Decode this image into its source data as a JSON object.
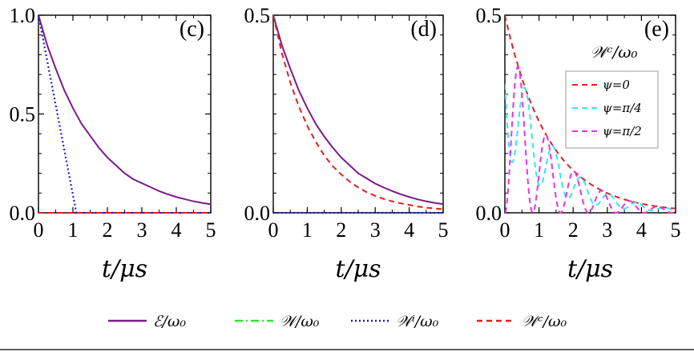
{
  "chart_data": [
    {
      "panel": "(c)",
      "type": "line",
      "xlabel": "t/μs",
      "xlim": [
        0,
        5
      ],
      "ylim": [
        0,
        1.0
      ],
      "xticks": [
        "0",
        "1",
        "2",
        "3",
        "4",
        "5"
      ],
      "yticks": [
        "0.0",
        "0.5",
        "1.0"
      ],
      "series": [
        {
          "name": "ℰ/ω₀",
          "color": "#7b1a8c",
          "dash": "solid",
          "x": [
            0,
            0.25,
            0.5,
            0.75,
            1,
            1.25,
            1.5,
            1.75,
            2,
            2.25,
            2.5,
            2.75,
            3,
            3.25,
            3.5,
            3.75,
            4,
            4.25,
            4.5,
            4.75,
            5
          ],
          "y": [
            1.0,
            0.85,
            0.73,
            0.62,
            0.53,
            0.45,
            0.39,
            0.33,
            0.28,
            0.24,
            0.2,
            0.17,
            0.15,
            0.13,
            0.11,
            0.094,
            0.08,
            0.069,
            0.058,
            0.05,
            0.043
          ]
        },
        {
          "name": "𝒲ⁱ/ω₀",
          "color": "#1a1ad6",
          "dash": "dotted",
          "x": [
            0,
            1.1,
            5
          ],
          "y": [
            1.0,
            0.0,
            0.0
          ]
        },
        {
          "name": "𝒲ᶜ/ω₀",
          "color": "#e02020",
          "dash": "dashed",
          "x": [
            0,
            5
          ],
          "y": [
            0.0,
            0.0
          ]
        }
      ]
    },
    {
      "panel": "(d)",
      "type": "line",
      "xlabel": "t/μs",
      "xlim": [
        0,
        5
      ],
      "ylim": [
        0,
        0.5
      ],
      "xticks": [
        "0",
        "1",
        "2",
        "3",
        "4",
        "5"
      ],
      "yticks": [
        "0.0",
        "0.5"
      ],
      "series": [
        {
          "name": "ℰ/ω₀",
          "color": "#7b1a8c",
          "dash": "solid",
          "x": [
            0,
            0.25,
            0.5,
            0.75,
            1,
            1.25,
            1.5,
            1.75,
            2,
            2.25,
            2.5,
            2.75,
            3,
            3.25,
            3.5,
            3.75,
            4,
            4.25,
            4.5,
            4.75,
            5
          ],
          "y": [
            0.5,
            0.425,
            0.365,
            0.31,
            0.265,
            0.225,
            0.193,
            0.165,
            0.14,
            0.12,
            0.1,
            0.087,
            0.074,
            0.064,
            0.055,
            0.047,
            0.04,
            0.034,
            0.029,
            0.025,
            0.022
          ]
        },
        {
          "name": "𝒲ᶜ/ω₀",
          "color": "#e02020",
          "dash": "dashed",
          "x": [
            0,
            0.25,
            0.5,
            0.75,
            1,
            1.25,
            1.5,
            1.75,
            2,
            2.25,
            2.5,
            2.75,
            3,
            3.25,
            3.5,
            3.75,
            4,
            4.25,
            4.5,
            4.75,
            5
          ],
          "y": [
            0.5,
            0.405,
            0.33,
            0.27,
            0.22,
            0.18,
            0.145,
            0.118,
            0.097,
            0.079,
            0.064,
            0.052,
            0.043,
            0.035,
            0.029,
            0.024,
            0.02,
            0.016,
            0.013,
            0.011,
            0.009
          ]
        },
        {
          "name": "𝒲ⁱ/ω₀",
          "color": "#1a1ad6",
          "dash": "dotted",
          "x": [
            0,
            5
          ],
          "y": [
            0.0,
            0.0
          ]
        }
      ]
    },
    {
      "panel": "(e)",
      "type": "line",
      "title": "𝒲ᶜ/ω₀",
      "xlabel": "t/μs",
      "xlim": [
        0,
        5
      ],
      "ylim": [
        0,
        0.5
      ],
      "xticks": [
        "0",
        "1",
        "2",
        "3",
        "4",
        "5"
      ],
      "yticks": [
        "0.0",
        "0.5"
      ],
      "legend": "inset-right",
      "series": [
        {
          "name": "ψ=0",
          "color": "#e02020",
          "dash": "dashed",
          "phase": 0
        },
        {
          "name": "ψ=π/4",
          "color": "#33e6f0",
          "dash": "dashed",
          "phase": 0.785
        },
        {
          "name": "ψ=π/2",
          "color": "#e633e6",
          "dash": "dashed",
          "phase": 1.571
        }
      ]
    }
  ],
  "legend": [
    {
      "label": "ℰ/ω₀",
      "color": "#7b1a8c",
      "dash": "solid"
    },
    {
      "label": "𝒲/ω₀",
      "color": "#2ee62e",
      "dash": "dashdot"
    },
    {
      "label": "𝒲ⁱ/ω₀",
      "color": "#1a1ad6",
      "dash": "dotted"
    },
    {
      "label": "𝒲ᶜ/ω₀",
      "color": "#e02020",
      "dash": "dashed"
    }
  ]
}
